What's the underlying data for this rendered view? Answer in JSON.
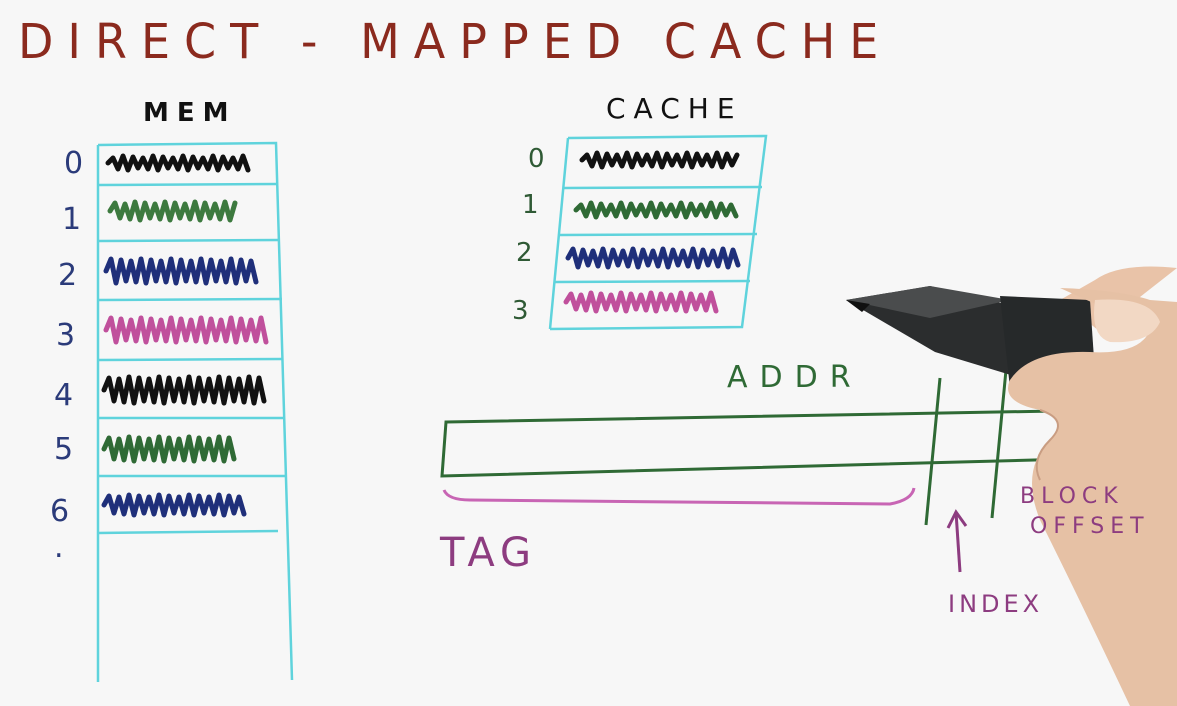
{
  "title": "DIRECT - MAPPED   CACHE",
  "memory": {
    "heading": "MEM",
    "rows": [
      {
        "index": "0",
        "color": "#111111"
      },
      {
        "index": "1",
        "color": "#3d7a3f"
      },
      {
        "index": "2",
        "color": "#1f2f7a"
      },
      {
        "index": "3",
        "color": "#c0509c"
      },
      {
        "index": "4",
        "color": "#111111"
      },
      {
        "index": "5",
        "color": "#2f6a35"
      },
      {
        "index": "6",
        "color": "#1f2f7a"
      }
    ],
    "continuation": "."
  },
  "cache": {
    "heading": "CACHE",
    "rows": [
      {
        "index": "0",
        "color": "#111111"
      },
      {
        "index": "1",
        "color": "#2f6a35"
      },
      {
        "index": "2",
        "color": "#1f2f7a"
      },
      {
        "index": "3",
        "color": "#c0509c"
      }
    ]
  },
  "address": {
    "label": "ADDR",
    "fields": {
      "tag": "TAG",
      "index": "INDEX",
      "block_offset_line1": "BLOCK",
      "block_offset_line2": "OFFSET"
    }
  },
  "colors": {
    "title": "#8b2a1e",
    "table_lines": "#5fd3dc",
    "address_box": "#2f6a35",
    "field_labels": "#8d3c80"
  }
}
